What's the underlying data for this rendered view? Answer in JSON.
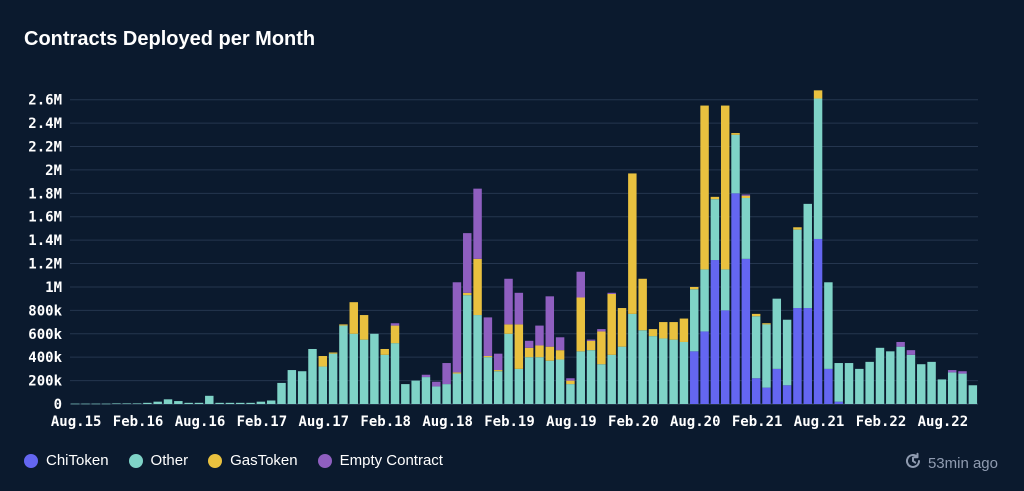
{
  "title": "Contracts Deployed per Month",
  "updated": "53min ago",
  "legend": [
    {
      "label": "ChiToken",
      "color": "#6466f1"
    },
    {
      "label": "Other",
      "color": "#7fd3c7"
    },
    {
      "label": "GasToken",
      "color": "#e9c13f"
    },
    {
      "label": "Empty Contract",
      "color": "#8f5fc0"
    }
  ],
  "chart_data": {
    "type": "bar",
    "stacked": true,
    "title": "Contracts Deployed per Month",
    "ylim": [
      0,
      2700000
    ],
    "y_ticks": [
      "0",
      "200k",
      "400k",
      "600k",
      "800k",
      "1M",
      "1.2M",
      "1.4M",
      "1.6M",
      "1.8M",
      "2M",
      "2.2M",
      "2.4M",
      "2.6M"
    ],
    "x_ticks": [
      {
        "label": "Aug.15",
        "index": 0
      },
      {
        "label": "Feb.16",
        "index": 6
      },
      {
        "label": "Aug.16",
        "index": 12
      },
      {
        "label": "Feb.17",
        "index": 18
      },
      {
        "label": "Aug.17",
        "index": 24
      },
      {
        "label": "Feb.18",
        "index": 30
      },
      {
        "label": "Aug.18",
        "index": 36
      },
      {
        "label": "Feb.19",
        "index": 42
      },
      {
        "label": "Aug.19",
        "index": 48
      },
      {
        "label": "Feb.20",
        "index": 54
      },
      {
        "label": "Aug.20",
        "index": 60
      },
      {
        "label": "Feb.21",
        "index": 66
      },
      {
        "label": "Aug.21",
        "index": 72
      },
      {
        "label": "Feb.22",
        "index": 78
      },
      {
        "label": "Aug.22",
        "index": 84
      }
    ],
    "grid": true,
    "legend_position": "bottom-left",
    "series": [
      {
        "name": "ChiToken",
        "color": "#6466f1",
        "values": [
          0,
          0,
          0,
          0,
          0,
          0,
          0,
          0,
          0,
          0,
          0,
          0,
          0,
          0,
          0,
          0,
          0,
          0,
          0,
          0,
          0,
          0,
          0,
          0,
          0,
          0,
          0,
          0,
          0,
          0,
          0,
          0,
          0,
          0,
          0,
          0,
          0,
          0,
          0,
          0,
          0,
          0,
          0,
          0,
          0,
          0,
          0,
          0,
          0,
          0,
          0,
          0,
          0,
          0,
          0,
          0,
          0,
          0,
          0,
          0,
          450000,
          620000,
          1230000,
          800000,
          1800000,
          1240000,
          220000,
          140000,
          300000,
          160000,
          820000,
          820000,
          1410000,
          300000,
          20000,
          0,
          0,
          0,
          0,
          0,
          0,
          0,
          0,
          0,
          0,
          0,
          0,
          0
        ]
      },
      {
        "name": "Other",
        "color": "#7fd3c7",
        "values": [
          3000,
          3000,
          3000,
          3000,
          5000,
          5000,
          5000,
          10000,
          20000,
          40000,
          25000,
          10000,
          10000,
          70000,
          10000,
          10000,
          10000,
          10000,
          20000,
          30000,
          180000,
          290000,
          280000,
          470000,
          320000,
          430000,
          670000,
          600000,
          550000,
          600000,
          420000,
          520000,
          170000,
          200000,
          230000,
          150000,
          170000,
          260000,
          930000,
          760000,
          400000,
          280000,
          600000,
          300000,
          400000,
          400000,
          370000,
          380000,
          170000,
          450000,
          460000,
          340000,
          420000,
          490000,
          770000,
          630000,
          580000,
          560000,
          550000,
          530000,
          530000,
          530000,
          520000,
          350000,
          500000,
          520000,
          530000,
          540000,
          600000,
          560000,
          670000,
          890000,
          1200000,
          740000,
          330000,
          350000,
          300000,
          360000,
          480000,
          450000,
          490000,
          420000,
          340000,
          360000,
          210000,
          270000,
          260000,
          160000
        ]
      },
      {
        "name": "GasToken",
        "color": "#e9c13f",
        "values": [
          0,
          0,
          0,
          0,
          0,
          0,
          0,
          0,
          0,
          0,
          0,
          0,
          0,
          0,
          0,
          0,
          0,
          0,
          0,
          0,
          0,
          0,
          0,
          0,
          90000,
          10000,
          10000,
          270000,
          210000,
          0,
          50000,
          150000,
          0,
          0,
          0,
          0,
          0,
          10000,
          20000,
          480000,
          10000,
          10000,
          80000,
          380000,
          80000,
          100000,
          120000,
          80000,
          30000,
          460000,
          80000,
          280000,
          520000,
          330000,
          1200000,
          440000,
          60000,
          140000,
          150000,
          200000,
          20000,
          1400000,
          20000,
          1400000,
          15000,
          20000,
          20000,
          10000,
          0,
          0,
          20000,
          0,
          70000,
          0,
          0,
          0,
          0,
          0,
          0,
          0,
          0,
          0,
          0,
          0,
          0,
          0,
          0,
          0
        ]
      },
      {
        "name": "Empty Contract",
        "color": "#8f5fc0",
        "values": [
          0,
          0,
          0,
          0,
          0,
          0,
          0,
          0,
          0,
          0,
          0,
          0,
          0,
          0,
          0,
          0,
          0,
          0,
          0,
          0,
          0,
          0,
          0,
          0,
          0,
          0,
          0,
          0,
          0,
          0,
          0,
          20000,
          0,
          0,
          20000,
          40000,
          180000,
          770000,
          510000,
          600000,
          330000,
          140000,
          390000,
          270000,
          60000,
          170000,
          430000,
          110000,
          20000,
          220000,
          10000,
          20000,
          10000,
          0,
          0,
          0,
          0,
          0,
          0,
          0,
          0,
          0,
          0,
          0,
          0,
          10000,
          0,
          0,
          0,
          0,
          0,
          0,
          0,
          0,
          0,
          0,
          0,
          0,
          0,
          0,
          40000,
          40000,
          0,
          0,
          0,
          20000,
          20000,
          0
        ]
      }
    ]
  }
}
